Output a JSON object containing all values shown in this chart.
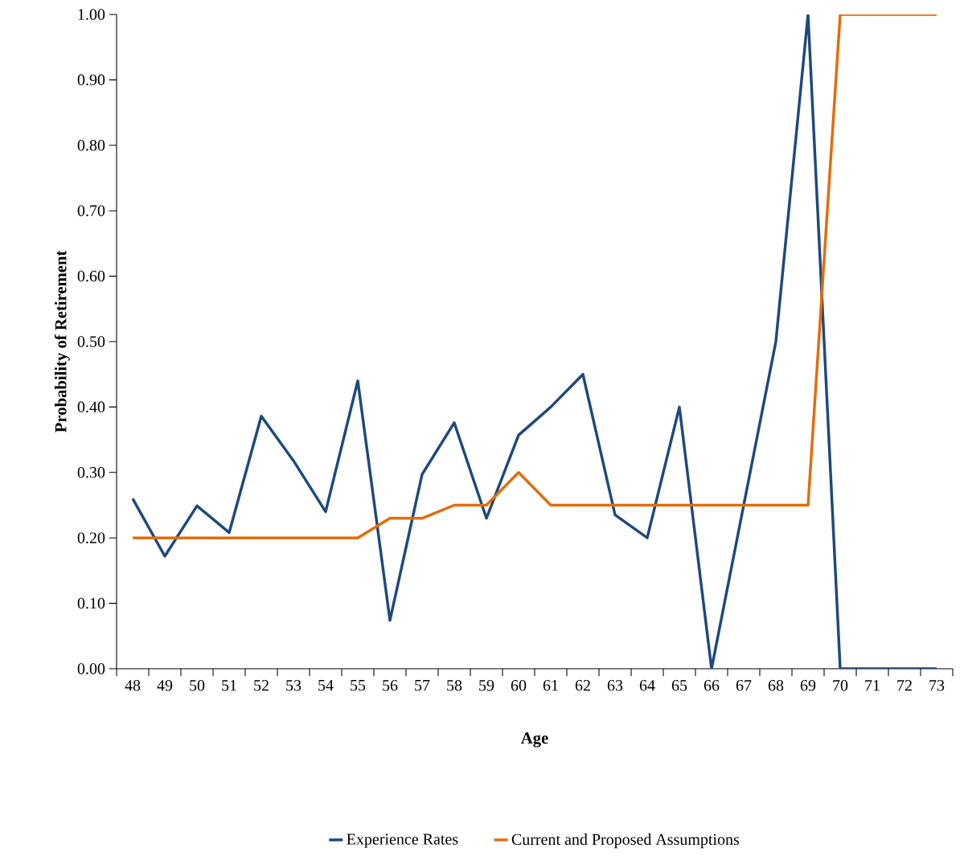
{
  "chart_data": {
    "type": "line",
    "xlabel": "Age",
    "ylabel": "Probability of Retirement",
    "categories": [
      "48",
      "49",
      "50",
      "51",
      "52",
      "53",
      "54",
      "55",
      "56",
      "57",
      "58",
      "59",
      "60",
      "61",
      "62",
      "63",
      "64",
      "65",
      "66",
      "67",
      "68",
      "69",
      "70",
      "71",
      "72",
      "73"
    ],
    "series": [
      {
        "name": "Experience Rates",
        "color": "#1f497d",
        "values": [
          0.26,
          0.172,
          0.249,
          0.208,
          0.386,
          0.318,
          0.24,
          0.44,
          0.074,
          0.297,
          0.376,
          0.23,
          0.357,
          0.4,
          0.45,
          0.235,
          0.2,
          0.4,
          0.0,
          0.25,
          0.5,
          1.0,
          0.0,
          0.0,
          0.0,
          0.0
        ]
      },
      {
        "name": "Current and Proposed Assumptions",
        "color": "#e46c0a",
        "values": [
          0.2,
          0.2,
          0.2,
          0.2,
          0.2,
          0.2,
          0.2,
          0.2,
          0.23,
          0.23,
          0.25,
          0.25,
          0.3,
          0.25,
          0.25,
          0.25,
          0.25,
          0.25,
          0.25,
          0.25,
          0.25,
          0.25,
          1.0,
          1.0,
          1.0,
          1.0
        ]
      }
    ],
    "ylim": [
      0,
      1
    ],
    "yticks": [
      {
        "value": 0,
        "label": "0.00"
      },
      {
        "value": 0.1,
        "label": "0.10"
      },
      {
        "value": 0.2,
        "label": "0.20"
      },
      {
        "value": 0.3,
        "label": "0.30"
      },
      {
        "value": 0.4,
        "label": "0.40"
      },
      {
        "value": 0.5,
        "label": "0.50"
      },
      {
        "value": 0.6,
        "label": "0.60"
      },
      {
        "value": 0.7,
        "label": "0.70"
      },
      {
        "value": 0.8,
        "label": "0.80"
      },
      {
        "value": 0.9,
        "label": "0.90"
      },
      {
        "value": 1,
        "label": "1.00"
      }
    ],
    "grid": false,
    "legend": "bottom",
    "marker": "none",
    "line_style": "solid"
  }
}
